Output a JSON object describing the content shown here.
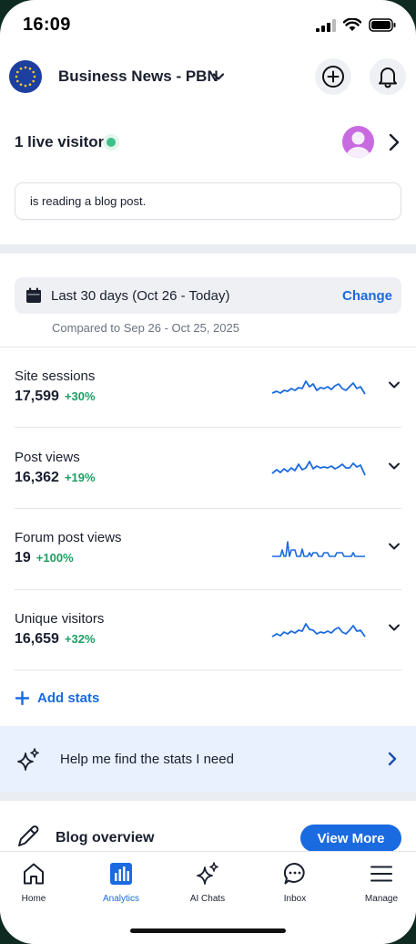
{
  "status_bar": {
    "time": "16:09"
  },
  "header": {
    "site_name": "Business News - PBN"
  },
  "live": {
    "label": "1 live visitor",
    "activity": "is reading a blog post."
  },
  "date_range": {
    "label": "Last 30 days  (Oct 26 - Today)",
    "change_label": "Change",
    "compare": "Compared to Sep 26 - Oct 25, 2025"
  },
  "stats": [
    {
      "title": "Site sessions",
      "value": "17,599",
      "change": "+30%"
    },
    {
      "title": "Post views",
      "value": "16,362",
      "change": "+19%"
    },
    {
      "title": "Forum post views",
      "value": "19",
      "change": "+100%"
    },
    {
      "title": "Unique visitors",
      "value": "16,659",
      "change": "+32%"
    }
  ],
  "add_stats_label": "Add stats",
  "help_banner": {
    "text": "Help me find the stats I need"
  },
  "blog": {
    "title": "Blog overview",
    "view_more": "View More"
  },
  "bottom_nav": {
    "items": [
      {
        "label": "Home",
        "icon": "home-icon"
      },
      {
        "label": "Analytics",
        "icon": "analytics-icon",
        "active": true
      },
      {
        "label": "AI Chats",
        "icon": "sparkle-icon"
      },
      {
        "label": "Inbox",
        "icon": "chat-bubble-icon"
      },
      {
        "label": "Manage",
        "icon": "menu-icon"
      }
    ]
  },
  "colors": {
    "accent": "#1a6ae0",
    "positive": "#1f9d64",
    "live": "#3fbf8a",
    "banner": "#e8f1fd"
  }
}
